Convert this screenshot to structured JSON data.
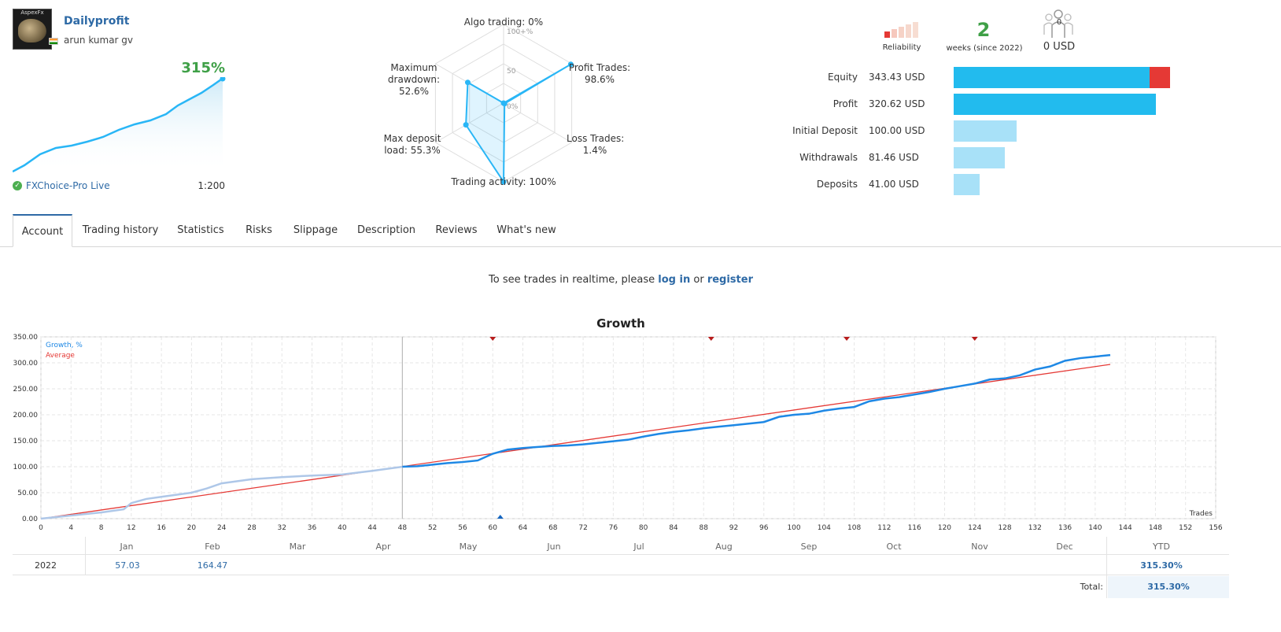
{
  "profile": {
    "avatar_text": "AspexFx",
    "name": "Dailyprofit",
    "author": "arun kumar gv",
    "growth": "315%",
    "broker": "FXChoice-Pro Live",
    "leverage": "1:200"
  },
  "radar": {
    "algo_trading": "Algo trading: 0%",
    "profit_trades_1": "Profit Trades:",
    "profit_trades_2": "98.6%",
    "loss_trades_1": "Loss Trades:",
    "loss_trades_2": "1.4%",
    "trading_activity": "Trading activity: 100%",
    "max_deposit_1": "Max deposit",
    "max_deposit_2": "load: 55.3%",
    "max_drawdown_1": "Maximum",
    "max_drawdown_2": "drawdown:",
    "max_drawdown_3": "52.6%",
    "tick_100": "100+%",
    "tick_50": "50",
    "tick_0": "0%",
    "values": {
      "algo_trading": 0,
      "profit_trades": 98.6,
      "loss_trades": 1.4,
      "trading_activity": 100,
      "max_deposit_load": 55.3,
      "max_drawdown": 52.6
    }
  },
  "stats": {
    "reliability_label": "Reliability",
    "reliability_level": 1,
    "weeks": "2",
    "weeks_label": "weeks (since 2022)",
    "subscribers": "0",
    "subscribers_usd": "0 USD"
  },
  "balances": [
    {
      "label": "Equity",
      "value": "343.43 USD",
      "amount": 343.43
    },
    {
      "label": "Profit",
      "value": "320.62 USD",
      "amount": 320.62
    },
    {
      "label": "Initial Deposit",
      "value": "100.00 USD",
      "amount": 100.0
    },
    {
      "label": "Withdrawals",
      "value": "81.46 USD",
      "amount": 81.46
    },
    {
      "label": "Deposits",
      "value": "41.00 USD",
      "amount": 41.0
    }
  ],
  "tabs": [
    "Account",
    "Trading history",
    "Statistics",
    "Risks",
    "Slippage",
    "Description",
    "Reviews",
    "What's new"
  ],
  "realtime": {
    "prefix": "To see trades in realtime, please ",
    "login": "log in",
    "or": " or ",
    "register": "register"
  },
  "chart_data": {
    "type": "line",
    "title": "Growth",
    "xlabel": "Trades",
    "ylabel": "",
    "xlim": [
      0,
      156
    ],
    "ylim": [
      0,
      350
    ],
    "x_ticks": [
      0,
      4,
      8,
      12,
      16,
      20,
      24,
      28,
      32,
      36,
      40,
      44,
      48,
      52,
      56,
      60,
      64,
      68,
      72,
      76,
      80,
      84,
      88,
      92,
      96,
      100,
      104,
      108,
      112,
      116,
      120,
      124,
      128,
      132,
      136,
      140,
      144,
      148,
      152,
      156
    ],
    "y_ticks": [
      "0.00",
      "50.00",
      "100.00",
      "150.00",
      "200.00",
      "250.00",
      "300.00",
      "350.00"
    ],
    "months": [
      "Jan",
      "Feb",
      "Mar",
      "Apr",
      "May",
      "Jun",
      "Jul",
      "Aug",
      "Sep",
      "Oct",
      "Nov",
      "Dec"
    ],
    "series": [
      {
        "name": "Growth, %",
        "color": "#1e88e5",
        "x": [
          0,
          4,
          8,
          11,
          12,
          14,
          16,
          18,
          20,
          22,
          24,
          26,
          28,
          32,
          36,
          40,
          44,
          48,
          50,
          52,
          54,
          56,
          58,
          60,
          62,
          64,
          66,
          68,
          70,
          72,
          74,
          76,
          78,
          80,
          82,
          84,
          86,
          88,
          90,
          92,
          94,
          96,
          98,
          100,
          102,
          104,
          106,
          108,
          110,
          112,
          114,
          116,
          118,
          120,
          122,
          124,
          126,
          128,
          130,
          132,
          134,
          136,
          138,
          140,
          142
        ],
        "y": [
          0,
          6,
          12,
          18,
          30,
          38,
          42,
          46,
          50,
          58,
          68,
          72,
          76,
          80,
          83,
          85,
          92,
          100,
          101,
          104,
          107,
          109,
          112,
          125,
          133,
          136,
          138,
          140,
          141,
          143,
          146,
          149,
          152,
          158,
          163,
          167,
          170,
          174,
          177,
          180,
          183,
          186,
          196,
          200,
          202,
          208,
          212,
          215,
          226,
          231,
          234,
          239,
          244,
          250,
          255,
          260,
          268,
          270,
          276,
          287,
          293,
          304,
          309,
          312,
          315
        ]
      },
      {
        "name": "Average",
        "color": "#e53935",
        "x": [
          0,
          142
        ],
        "y": [
          0,
          297
        ]
      }
    ],
    "markers_top_x": [
      60,
      89,
      107,
      124
    ],
    "marker_bottom_x": 61
  },
  "yearly": {
    "year": "2022",
    "ytd_header": "YTD",
    "cells": [
      {
        "month": "Jan",
        "value": "57.03"
      },
      {
        "month": "Feb",
        "value": "164.47"
      }
    ],
    "ytd": "315.30%",
    "total_label": "Total:",
    "total": "315.30%"
  }
}
